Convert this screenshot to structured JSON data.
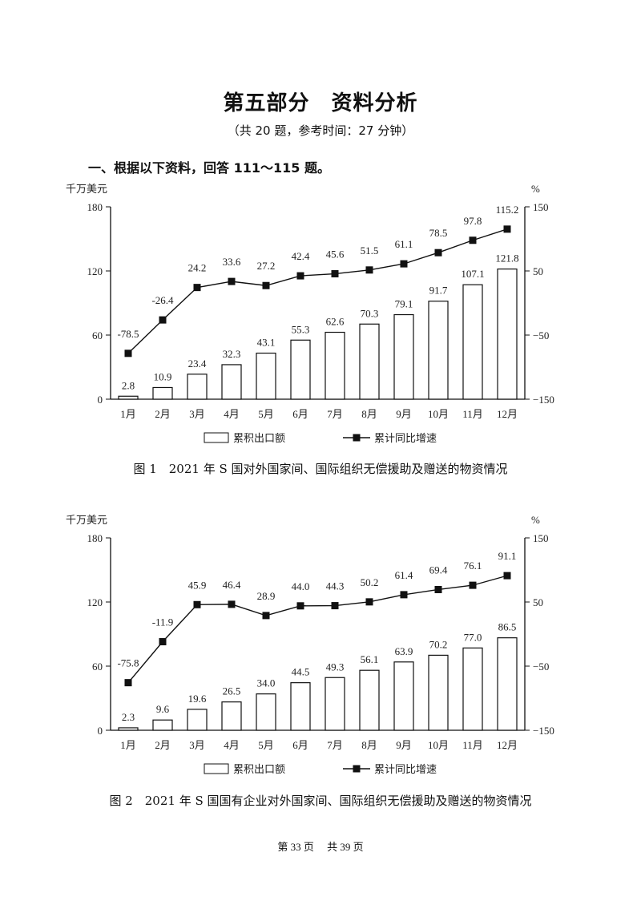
{
  "header": {
    "title": "第五部分　资料分析",
    "subtitle": "（共 20 题，参考时间：27 分钟）",
    "section": "一、根据以下资料，回答 111～115 题。"
  },
  "footer": "第 33 页　 共 39 页",
  "chart_data": [
    {
      "type": "bar+line",
      "title": "图 1　2021 年 S 国对外国家间、国际组织无偿援助及赠送的物资情况",
      "categories": [
        "1月",
        "2月",
        "3月",
        "4月",
        "5月",
        "6月",
        "7月",
        "8月",
        "9月",
        "10月",
        "11月",
        "12月"
      ],
      "ylabel_left": "千万美元",
      "ylabel_right": "%",
      "ylim_left": [
        0,
        180
      ],
      "yticks_left": [
        0,
        60,
        120,
        180
      ],
      "ylim_right": [
        -150,
        150
      ],
      "yticks_right": [
        -150,
        -50,
        50,
        150
      ],
      "grid": false,
      "legend_position": "bottom",
      "series": [
        {
          "name": "累积出口额",
          "type": "bar",
          "axis": "left",
          "values": [
            2.8,
            10.9,
            23.4,
            32.3,
            43.1,
            55.3,
            62.6,
            70.3,
            79.1,
            91.7,
            107.1,
            121.8
          ],
          "labels": [
            "2.8",
            "10.9",
            "23.4",
            "32.3",
            "43.1",
            "55.3",
            "62.6",
            "70.3",
            "79.1",
            "91.7",
            "107.1",
            "121.8"
          ]
        },
        {
          "name": "累计同比增速",
          "type": "line",
          "axis": "right",
          "values": [
            -78.5,
            -26.4,
            24.2,
            33.6,
            27.2,
            42.4,
            45.6,
            51.5,
            61.1,
            78.5,
            97.8,
            115.2
          ],
          "labels": [
            "-78.5",
            "-26.4",
            "24.2",
            "33.6",
            "27.2",
            "42.4",
            "45.6",
            "51.5",
            "61.1",
            "78.5",
            "97.8",
            "115.2"
          ]
        }
      ]
    },
    {
      "type": "bar+line",
      "title": "图 2　2021 年 S 国国有企业对外国家间、国际组织无偿援助及赠送的物资情况",
      "categories": [
        "1月",
        "2月",
        "3月",
        "4月",
        "5月",
        "6月",
        "7月",
        "8月",
        "9月",
        "10月",
        "11月",
        "12月"
      ],
      "ylabel_left": "千万美元",
      "ylabel_right": "%",
      "ylim_left": [
        0,
        180
      ],
      "yticks_left": [
        0,
        60,
        120,
        180
      ],
      "ylim_right": [
        -150,
        150
      ],
      "yticks_right": [
        -150,
        -50,
        50,
        150
      ],
      "grid": false,
      "legend_position": "bottom",
      "series": [
        {
          "name": "累积出口额",
          "type": "bar",
          "axis": "left",
          "values": [
            2.3,
            9.6,
            19.6,
            26.5,
            34.0,
            44.5,
            49.3,
            56.1,
            63.9,
            70.2,
            77.0,
            86.5
          ],
          "labels": [
            "2.3",
            "9.6",
            "19.6",
            "26.5",
            "34.0",
            "44.5",
            "49.3",
            "56.1",
            "63.9",
            "70.2",
            "77.0",
            "86.5"
          ]
        },
        {
          "name": "累计同比增速",
          "type": "line",
          "axis": "right",
          "values": [
            -75.8,
            -11.9,
            45.9,
            46.4,
            28.9,
            44.0,
            44.3,
            50.2,
            61.4,
            69.4,
            76.1,
            91.1
          ],
          "labels": [
            "-75.8",
            "-11.9",
            "45.9",
            "46.4",
            "28.9",
            "44.0",
            "44.3",
            "50.2",
            "61.4",
            "69.4",
            "76.1",
            "91.1"
          ]
        }
      ]
    }
  ]
}
